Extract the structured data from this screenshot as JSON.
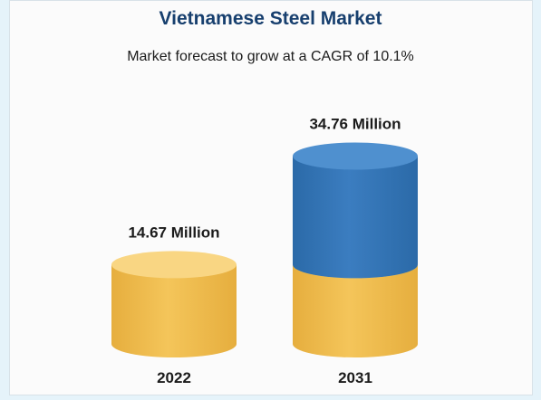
{
  "chart_data": {
    "type": "bar",
    "title": "Vietnamese Steel Market",
    "subtitle": "Market forecast to grow at a CAGR of 10.1%",
    "categories": [
      "2022",
      "2031"
    ],
    "values": [
      14.67,
      34.76
    ],
    "data_labels": [
      "14.67 Million",
      "34.76 Million"
    ],
    "colors": {
      "base": "#f4c55a",
      "base_dark": "#e6ae3e",
      "base_top": "#f9d683",
      "growth": "#3b7dc0",
      "growth_dark": "#2b6aa8",
      "growth_top": "#4f90cf",
      "title": "#173f6e"
    }
  }
}
